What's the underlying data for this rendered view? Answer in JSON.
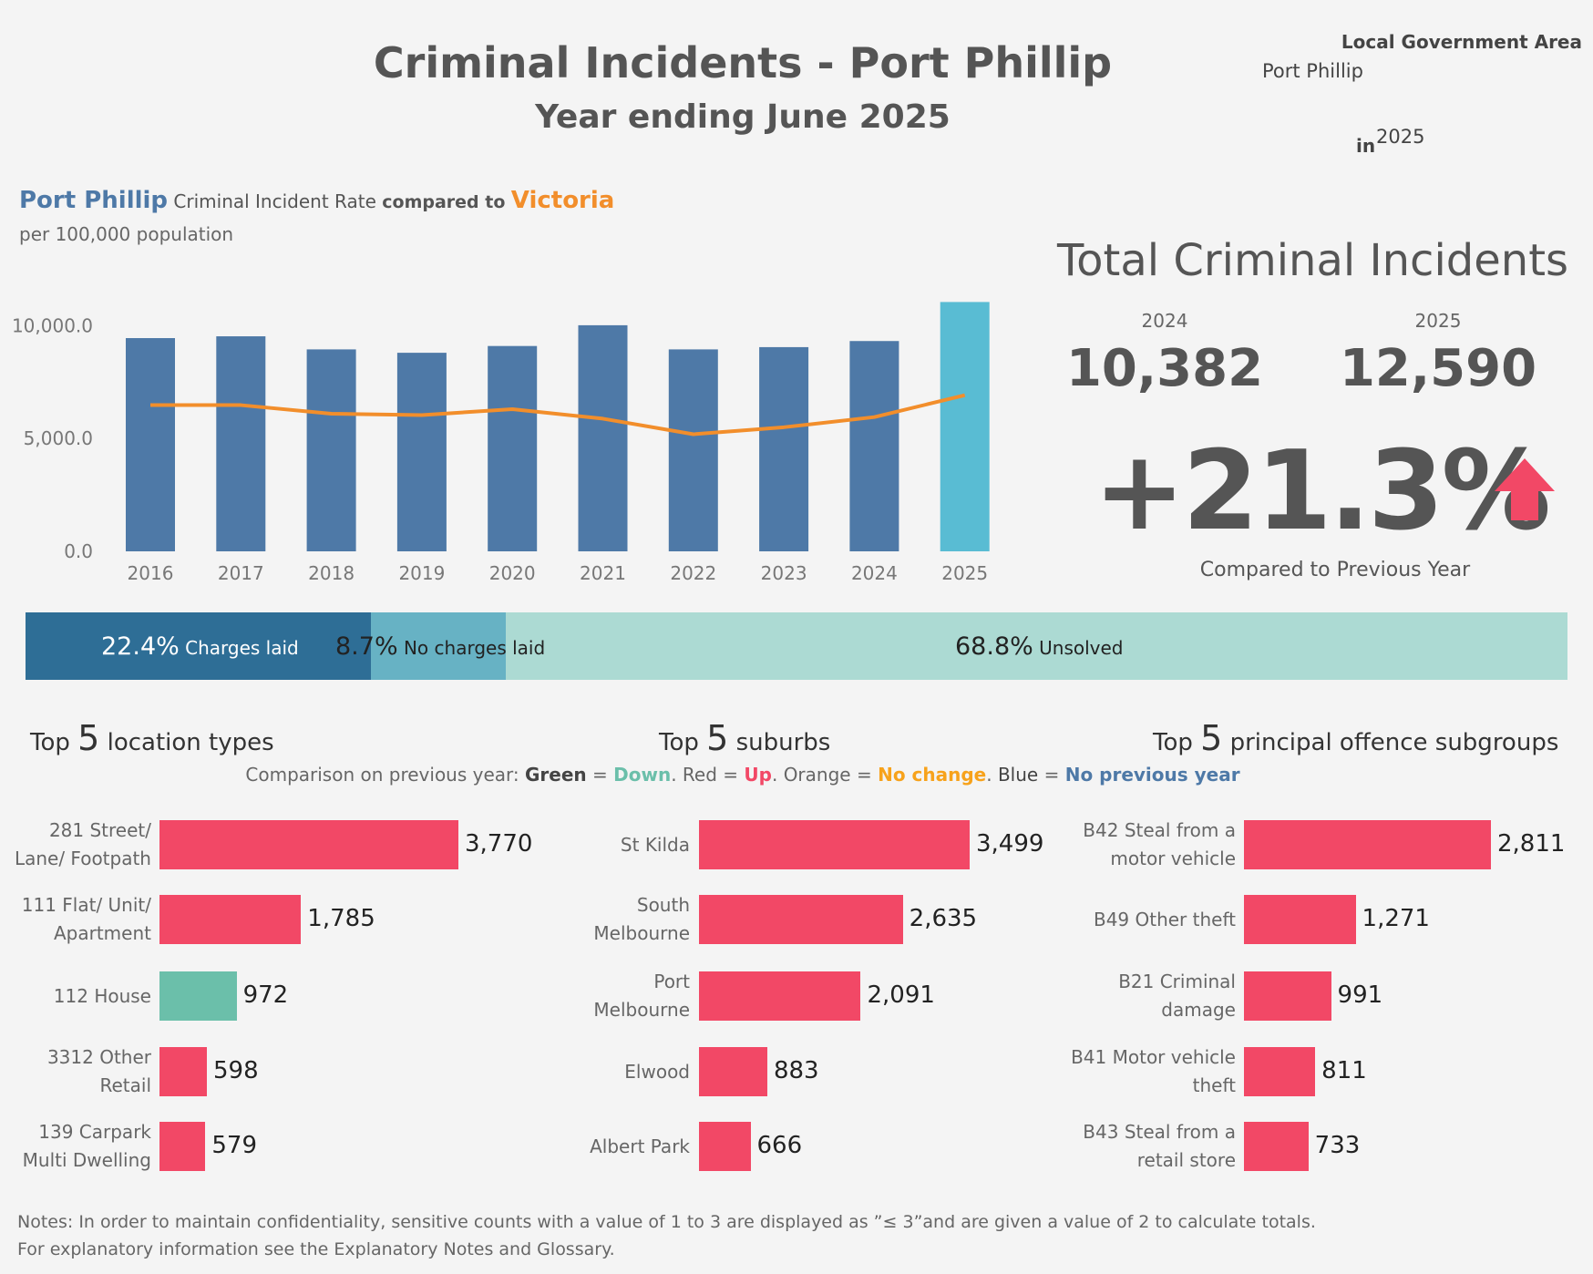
{
  "header": {
    "title": "Criminal Incidents - Port Phillip",
    "subtitle": "Year ending June 2025"
  },
  "filters": {
    "lga_label": "Local Government Area",
    "lga_value": "Port Phillip",
    "in_label": "in",
    "year_value": "2025"
  },
  "rate_chart": {
    "heading_area": "Port Phillip",
    "heading_middle": "Criminal Incident Rate",
    "heading_compared": "compared to",
    "heading_state": "Victoria",
    "subheading": "per 100,000 population",
    "y_ticks": [
      "10,000.0",
      "5,000.0",
      "0.0"
    ],
    "colors": {
      "bar": "#4e79a7",
      "bar_current": "#59bcd3",
      "line": "#f28e2b"
    }
  },
  "chart_data": [
    {
      "type": "bar",
      "categories": [
        "2016",
        "2017",
        "2018",
        "2019",
        "2020",
        "2021",
        "2022",
        "2023",
        "2024",
        "2025"
      ],
      "series": [
        {
          "name": "Port Phillip",
          "values": [
            9450,
            9530,
            8950,
            8800,
            9100,
            10020,
            8950,
            9050,
            9320,
            11050
          ]
        },
        {
          "name": "Victoria",
          "values": [
            6480,
            6480,
            6100,
            6040,
            6300,
            5880,
            5190,
            5500,
            5950,
            6920
          ]
        }
      ],
      "ylim": [
        0,
        11050
      ],
      "xlabel": "",
      "ylabel": ""
    },
    {
      "type": "bar",
      "title": "Top 5 location types",
      "categories": [
        "281 Street/ Lane/ Footpath",
        "111 Flat/ Unit/ Apartment",
        "112 House",
        "3312 Other Retail",
        "139 Carpark Multi Dwelling"
      ],
      "values": [
        3770,
        1785,
        972,
        598,
        579
      ],
      "trend": [
        "Up",
        "Up",
        "Down",
        "Up",
        "Up"
      ]
    },
    {
      "type": "bar",
      "title": "Top 5 suburbs",
      "categories": [
        "St Kilda",
        "South Melbourne",
        "Port Melbourne",
        "Elwood",
        "Albert Park"
      ],
      "values": [
        3499,
        2635,
        2091,
        883,
        666
      ],
      "trend": [
        "Up",
        "Up",
        "Up",
        "Up",
        "Up"
      ]
    },
    {
      "type": "bar",
      "title": "Top 5 principal offence subgroups",
      "categories": [
        "B42 Steal from a motor vehicle",
        "B49 Other theft",
        "B21 Criminal damage",
        "B41 Motor vehicle theft",
        "B43 Steal from a retail store"
      ],
      "values": [
        2811,
        1271,
        991,
        811,
        733
      ],
      "trend": [
        "Up",
        "Up",
        "Up",
        "Up",
        "Up"
      ]
    }
  ],
  "totals": {
    "title": "Total Criminal Incidents",
    "prev_year": "2024",
    "prev_value": "10,382",
    "curr_year": "2025",
    "curr_value": "12,590",
    "change": "+21.3%",
    "change_icon": "arrow-up-icon",
    "change_color": "#f24866",
    "compared_label": "Compared to Previous Year"
  },
  "outcomes": [
    {
      "pct": "22.4%",
      "label": "Charges laid",
      "share": 22.4,
      "color": "#2e6e96",
      "text_color": "#ffffff"
    },
    {
      "pct": "8.7%",
      "label": "No charges laid",
      "share": 8.7,
      "color": "#67b2c4",
      "text_color": "#222222"
    },
    {
      "pct": "68.8%",
      "label": "Unsolved",
      "share": 68.8,
      "color": "#acdad3",
      "text_color": "#222222"
    }
  ],
  "sections": {
    "top_word": "Top",
    "top_n": "5",
    "locations_suffix": "location types",
    "suburbs_suffix": "suburbs",
    "offences_suffix": "principal offence subgroups"
  },
  "legend": {
    "prefix": "Comparison on previous year:",
    "green": "Green",
    "down": "Down",
    "red": "Red",
    "up": "Up",
    "orange": "Orange",
    "no_change": "No change",
    "blue": "Blue",
    "no_prev": "No previous year",
    "eq": "=",
    "colors": {
      "down": "#6bbfaa",
      "up": "#f24866",
      "no_change": "#f7a21b",
      "no_prev": "#4e79a7"
    }
  },
  "location_labels": [
    [
      "281 Street/",
      "Lane/ Footpath"
    ],
    [
      "111 Flat/ Unit/",
      "Apartment"
    ],
    [
      "112 House"
    ],
    [
      "3312 Other",
      "Retail"
    ],
    [
      "139 Carpark",
      "Multi Dwelling"
    ]
  ],
  "location_values": [
    "3,770",
    "1,785",
    "972",
    "598",
    "579"
  ],
  "suburb_labels": [
    [
      "St Kilda"
    ],
    [
      "South",
      "Melbourne"
    ],
    [
      "Port",
      "Melbourne"
    ],
    [
      "Elwood"
    ],
    [
      "Albert Park"
    ]
  ],
  "suburb_values": [
    "3,499",
    "2,635",
    "2,091",
    "883",
    "666"
  ],
  "offence_labels": [
    [
      "B42 Steal from a",
      "motor vehicle"
    ],
    [
      "B49 Other theft"
    ],
    [
      "B21 Criminal",
      "damage"
    ],
    [
      "B41 Motor vehicle",
      "theft"
    ],
    [
      "B43 Steal from a",
      "retail store"
    ]
  ],
  "offence_values": [
    "2,811",
    "1,271",
    "991",
    "811",
    "733"
  ],
  "notes": {
    "label": "Notes",
    "line1": ":  In order to maintain confidentiality, sensitive counts with a value of 1 to 3  are displayed as ”≤ 3”and are given a value of 2 to calculate totals.",
    "line2": "For explanatory information see the Explanatory Notes and Glossary."
  }
}
